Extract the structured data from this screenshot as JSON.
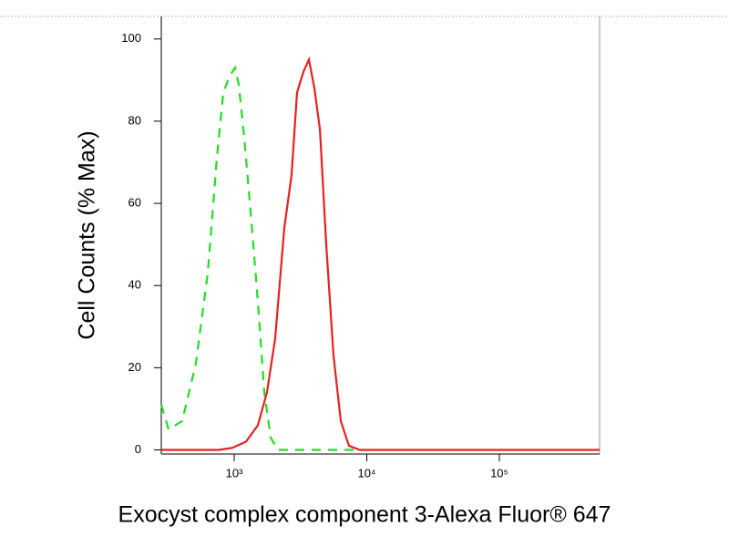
{
  "chart_data": {
    "type": "line",
    "xlabel": "Exocyst complex component 3-Alexa Fluor® 647",
    "ylabel": "Cell Counts (% Max)",
    "xscale": "log",
    "xlim": [
      282,
      570000
    ],
    "ylim": [
      -1,
      105.5
    ],
    "xticks": [
      {
        "value": 1000,
        "label": "10³"
      },
      {
        "value": 10000,
        "label": "10⁴"
      },
      {
        "value": 100000,
        "label": "10⁵"
      }
    ],
    "yticks": [
      0,
      20,
      40,
      60,
      80,
      100
    ],
    "series": [
      {
        "color": "#22dd22",
        "dashed": true,
        "x": [
          282,
          320,
          405,
          514,
          632,
          740,
          828,
          925,
          1016,
          1082,
          1191,
          1330,
          1510,
          1687,
          1884,
          2138,
          3715,
          9620
        ],
        "values": [
          11,
          5,
          7,
          21,
          43,
          71,
          87,
          91,
          93,
          89,
          76,
          58,
          36,
          14,
          3,
          0,
          0,
          0
        ]
      },
      {
        "color": "#e8201e",
        "dashed": false,
        "x": [
          282,
          557,
          764,
          969,
          1228,
          1510,
          1766,
          2036,
          2388,
          2710,
          2979,
          3328,
          3661,
          4029,
          4433,
          4945,
          5610,
          6370,
          7340,
          8870,
          570000
        ],
        "values": [
          0,
          0,
          0,
          0.5,
          2,
          6,
          14,
          27,
          54,
          67,
          87,
          92,
          95,
          88,
          78,
          50,
          23,
          7,
          1,
          0,
          0
        ]
      }
    ]
  }
}
